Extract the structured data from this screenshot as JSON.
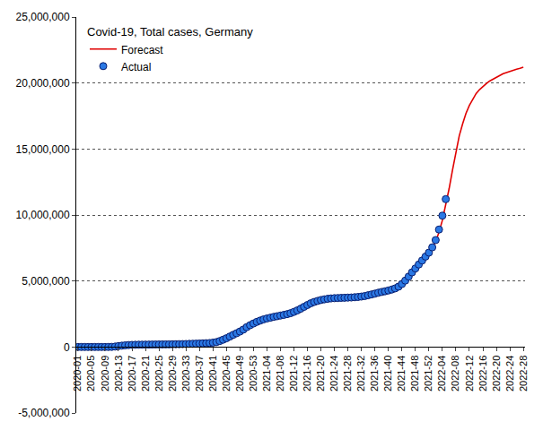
{
  "chart_data": {
    "type": "line",
    "title": "Covid-19, Total cases, Germany",
    "categories": [
      "2020-01",
      null,
      null,
      null,
      "2020-05",
      null,
      null,
      null,
      "2020-09",
      null,
      null,
      null,
      "2020-13",
      null,
      null,
      null,
      "2020-17",
      null,
      null,
      null,
      "2020-21",
      null,
      null,
      null,
      "2020-25",
      null,
      null,
      null,
      "2020-29",
      null,
      null,
      null,
      "2020-33",
      null,
      null,
      null,
      "2020-37",
      null,
      null,
      null,
      "2020-41",
      null,
      null,
      null,
      "2020-45",
      null,
      null,
      null,
      "2020-49",
      null,
      null,
      null,
      "2020-53",
      null,
      null,
      null,
      "2021-04",
      null,
      null,
      null,
      "2021-08",
      null,
      null,
      null,
      "2021-12",
      null,
      null,
      null,
      "2021-16",
      null,
      null,
      null,
      "2021-20",
      null,
      null,
      null,
      "2021-24",
      null,
      null,
      null,
      "2021-28",
      null,
      null,
      null,
      "2021-32",
      null,
      null,
      null,
      "2021-36",
      null,
      null,
      null,
      "2021-40",
      null,
      null,
      null,
      "2021-44",
      null,
      null,
      null,
      "2021-48",
      null,
      null,
      null,
      "2021-52",
      null,
      null,
      null,
      "2022-04",
      null,
      null,
      null,
      "2022-08",
      null,
      null,
      null,
      "2022-12",
      null,
      null,
      null,
      "2022-16",
      null,
      null,
      null,
      "2022-20",
      null,
      null,
      null,
      "2022-24",
      null,
      null,
      null,
      "2022-28"
    ],
    "series": [
      {
        "name": "Forecast",
        "type": "line",
        "color": "#e00000",
        "line_style": "solid",
        "values": [
          0,
          0,
          0,
          0,
          0,
          0,
          0,
          0,
          100,
          1500,
          8000,
          30000,
          65000,
          98000,
          125000,
          145000,
          158000,
          166000,
          174000,
          178000,
          181000,
          184000,
          187000,
          190000,
          193000,
          196000,
          199000,
          201000,
          203000,
          208000,
          214000,
          221000,
          231000,
          240000,
          249000,
          258000,
          269000,
          282000,
          284000,
          299000,
          325000,
          365000,
          440000,
          540000,
          650000,
          780000,
          910000,
          1030000,
          1160000,
          1310000,
          1480000,
          1630000,
          1760000,
          1880000,
          1990000,
          2080000,
          2160000,
          2230000,
          2290000,
          2340000,
          2390000,
          2440000,
          2500000,
          2580000,
          2680000,
          2790000,
          2920000,
          3050000,
          3180000,
          3300000,
          3390000,
          3460000,
          3520000,
          3570000,
          3610000,
          3640000,
          3660000,
          3680000,
          3700000,
          3720000,
          3740000,
          3760000,
          3790000,
          3820000,
          3850000,
          3890000,
          3940000,
          4000000,
          4060000,
          4120000,
          4180000,
          4240000,
          4300000,
          4380000,
          4480000,
          4620000,
          4820000,
          5070000,
          5360000,
          5670000,
          5980000,
          6280000,
          6580000,
          6880000,
          7180000,
          7500000,
          8000000,
          8700000,
          9600000,
          10700000,
          12000000,
          13400000,
          14800000,
          16000000,
          16900000,
          17700000,
          18300000,
          18800000,
          19200000,
          19500000,
          19750000,
          19950000,
          20150000,
          20300000,
          20450000,
          20580000,
          20700000,
          20800000,
          20900000,
          20980000,
          21050000,
          21120000,
          21200000
        ]
      },
      {
        "name": "Actual",
        "type": "scatter",
        "color": "#2a78e4",
        "marker": "circle",
        "values": [
          0,
          0,
          0,
          0,
          14,
          16,
          16,
          16,
          79,
          1100,
          7200,
          32000,
          67000,
          100000,
          128000,
          146000,
          160000,
          167000,
          173000,
          177000,
          180000,
          183000,
          185000,
          188000,
          192000,
          195000,
          197000,
          200000,
          203000,
          207000,
          212000,
          219000,
          227000,
          237000,
          245000,
          253000,
          262000,
          273000,
          286000,
          301000,
          330000,
          370000,
          450000,
          550000,
          660000,
          790000,
          920000,
          1040000,
          1170000,
          1320000,
          1500000,
          1650000,
          1780000,
          1900000,
          2000000,
          2090000,
          2160000,
          2220000,
          2280000,
          2330000,
          2380000,
          2430000,
          2490000,
          2560000,
          2660000,
          2770000,
          2900000,
          3040000,
          3180000,
          3310000,
          3410000,
          3490000,
          3560000,
          3610000,
          3650000,
          3680000,
          3700000,
          3710000,
          3720000,
          3730000,
          3740000,
          3750000,
          3770000,
          3790000,
          3820000,
          3860000,
          3920000,
          3980000,
          4040000,
          4110000,
          4170000,
          4220000,
          4280000,
          4350000,
          4440000,
          4570000,
          4770000,
          5030000,
          5330000,
          5650000,
          5950000,
          6250000,
          6550000,
          6850000,
          7150000,
          7550000,
          8100000,
          8900000,
          9950000,
          11200000,
          null,
          null,
          null,
          null,
          null,
          null,
          null,
          null,
          null,
          null,
          null,
          null,
          null,
          null,
          null,
          null,
          null,
          null,
          null,
          null,
          null,
          null,
          null
        ]
      }
    ],
    "ylim": [
      -5000000,
      25000000
    ],
    "yticks": [
      {
        "value": -5000000,
        "label": "-5,000,000"
      },
      0,
      {
        "value": 5000000,
        "label": "5,000,000"
      },
      {
        "value": 10000000,
        "label": "10,000,000"
      },
      {
        "value": 15000000,
        "label": "15,000,000"
      },
      {
        "value": 20000000,
        "label": "20,000,000"
      },
      {
        "value": 25000000,
        "label": "25,000,000"
      }
    ],
    "grid": true,
    "legend": "upper left"
  }
}
